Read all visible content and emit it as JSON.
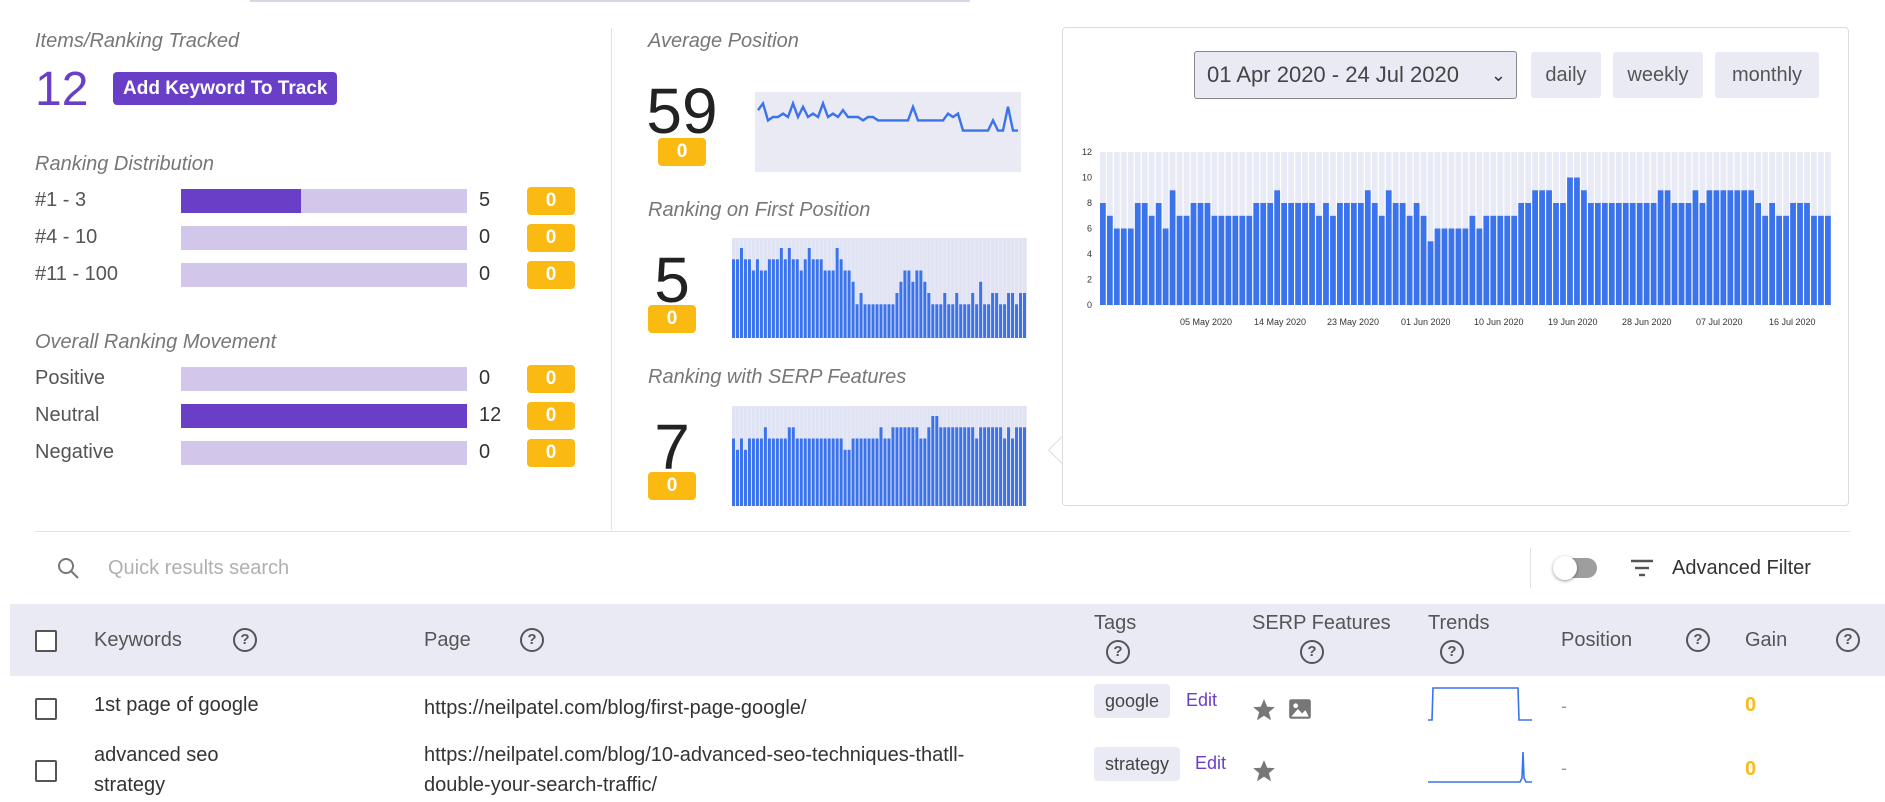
{
  "summary": {
    "tracked_label": "Items/Ranking Tracked",
    "tracked_count": "12",
    "add_keyword_label": "Add Keyword To Track",
    "distribution_label": "Ranking Distribution",
    "distribution": [
      {
        "label": "#1 - 3",
        "value": "5",
        "share": 0.42,
        "gain": "0"
      },
      {
        "label": "#4 - 10",
        "value": "0",
        "share": 0,
        "gain": "0"
      },
      {
        "label": "#11 - 100",
        "value": "0",
        "share": 0,
        "gain": "0"
      }
    ],
    "movement_label": "Overall Ranking Movement",
    "movement": [
      {
        "label": "Positive",
        "value": "0",
        "share": 0,
        "gain": "0"
      },
      {
        "label": "Neutral",
        "value": "12",
        "share": 1,
        "gain": "0"
      },
      {
        "label": "Negative",
        "value": "0",
        "share": 0,
        "gain": "0"
      }
    ]
  },
  "metrics": {
    "average_position": {
      "label": "Average Position",
      "value": "59",
      "gain": "0",
      "trend": [
        3,
        1,
        6,
        5,
        5,
        4,
        5,
        1,
        5,
        2,
        5,
        4,
        5,
        1,
        5,
        4,
        5,
        3,
        5,
        5,
        5,
        6,
        5,
        5,
        6,
        6,
        6,
        6,
        6,
        6,
        6,
        2,
        6,
        6,
        6,
        6,
        6,
        6,
        4,
        5,
        4,
        9,
        9,
        9,
        9,
        9,
        9,
        6,
        9,
        9,
        2,
        9,
        9
      ]
    },
    "first_position": {
      "label": "Ranking on First Position",
      "value": "5",
      "gain": "0",
      "bars": [
        7,
        7,
        8,
        7,
        7,
        6,
        7,
        6,
        6,
        7,
        7,
        7,
        8,
        7,
        8,
        7,
        7,
        6,
        7,
        8,
        7,
        7,
        7,
        6,
        6,
        6,
        8,
        7,
        6,
        6,
        5,
        3,
        4,
        3,
        3,
        3,
        3,
        3,
        3,
        3,
        3,
        4,
        5,
        6,
        6,
        5,
        6,
        6,
        5,
        4,
        3,
        3,
        3,
        4,
        3,
        3,
        4,
        3,
        3,
        3,
        4,
        3,
        5,
        3,
        3,
        4,
        4,
        3,
        3,
        4,
        4,
        3,
        4,
        4
      ]
    },
    "serp_features": {
      "label": "Ranking with SERP Features",
      "value": "7",
      "gain": "0",
      "bars": [
        6,
        5,
        6,
        5,
        6,
        6,
        6,
        6,
        7,
        6,
        6,
        6,
        6,
        6,
        7,
        7,
        6,
        6,
        6,
        6,
        6,
        6,
        6,
        6,
        6,
        6,
        6,
        6,
        5,
        5,
        6,
        6,
        6,
        6,
        6,
        6,
        6,
        7,
        6,
        6,
        7,
        7,
        7,
        7,
        7,
        7,
        7,
        6,
        6,
        7,
        8,
        8,
        7,
        7,
        7,
        7,
        7,
        7,
        7,
        7,
        7,
        6,
        7,
        7,
        7,
        7,
        7,
        7,
        6,
        7,
        6,
        7,
        7,
        7
      ]
    }
  },
  "panel": {
    "date_range": "01 Apr 2020 - 24 Jul 2020",
    "periods": [
      "daily",
      "weekly",
      "monthly"
    ]
  },
  "chart_data": {
    "type": "bar",
    "ylim": [
      0,
      12
    ],
    "yticks": [
      "0",
      "2",
      "4",
      "6",
      "8",
      "10",
      "12"
    ],
    "xticks": [
      "05 May 2020",
      "14 May 2020",
      "23 May 2020",
      "01 Jun 2020",
      "10 Jun 2020",
      "19 Jun 2020",
      "28 Jun 2020",
      "07 Jul 2020",
      "16 Jul 2020"
    ],
    "values": [
      8,
      7,
      6,
      6,
      6,
      8,
      8,
      7,
      8,
      6,
      9,
      7,
      7,
      8,
      8,
      8,
      7,
      7,
      7,
      7,
      7,
      7,
      8,
      8,
      8,
      9,
      8,
      8,
      8,
      8,
      8,
      7,
      8,
      7,
      8,
      8,
      8,
      8,
      9,
      8,
      7,
      9,
      8,
      8,
      7,
      8,
      7,
      5,
      6,
      6,
      6,
      6,
      6,
      7,
      6,
      7,
      7,
      7,
      7,
      7,
      8,
      8,
      9,
      9,
      9,
      8,
      8,
      10,
      10,
      9,
      8,
      8,
      8,
      8,
      8,
      8,
      8,
      8,
      8,
      8,
      9,
      9,
      8,
      8,
      8,
      9,
      8,
      9,
      9,
      9,
      9,
      9,
      9,
      9,
      8,
      7,
      8,
      7,
      7,
      8,
      8,
      8,
      7,
      7,
      7
    ]
  },
  "search": {
    "placeholder": "Quick results search"
  },
  "filter": {
    "label": "Advanced Filter"
  },
  "table": {
    "headers": {
      "keywords": "Keywords",
      "page": "Page",
      "tags": "Tags",
      "serp": "SERP Features",
      "trends": "Trends",
      "position": "Position",
      "gain": "Gain"
    },
    "help_glyph": "?",
    "edit_label": "Edit",
    "rows": [
      {
        "keyword_line1": "1st page of google",
        "keyword_line2": "",
        "page_line1": "https://neilpatel.com/blog/first-page-google/",
        "page_line2": "",
        "tag": "google",
        "position": "-",
        "gain": "0",
        "serp_icons": [
          "star-icon",
          "image-icon"
        ]
      },
      {
        "keyword_line1": "advanced seo",
        "keyword_line2": "strategy",
        "page_line1": "https://neilpatel.com/blog/10-advanced-seo-techniques-thatll-",
        "page_line2": "double-your-search-traffic/",
        "tag": "strategy",
        "position": "-",
        "gain": "0",
        "serp_icons": [
          "star-icon"
        ]
      }
    ]
  },
  "colors": {
    "accent": "#6a3fc8",
    "badge": "#fbba12",
    "chart_blue": "#3a73ec",
    "track": "#d2c6ea"
  }
}
